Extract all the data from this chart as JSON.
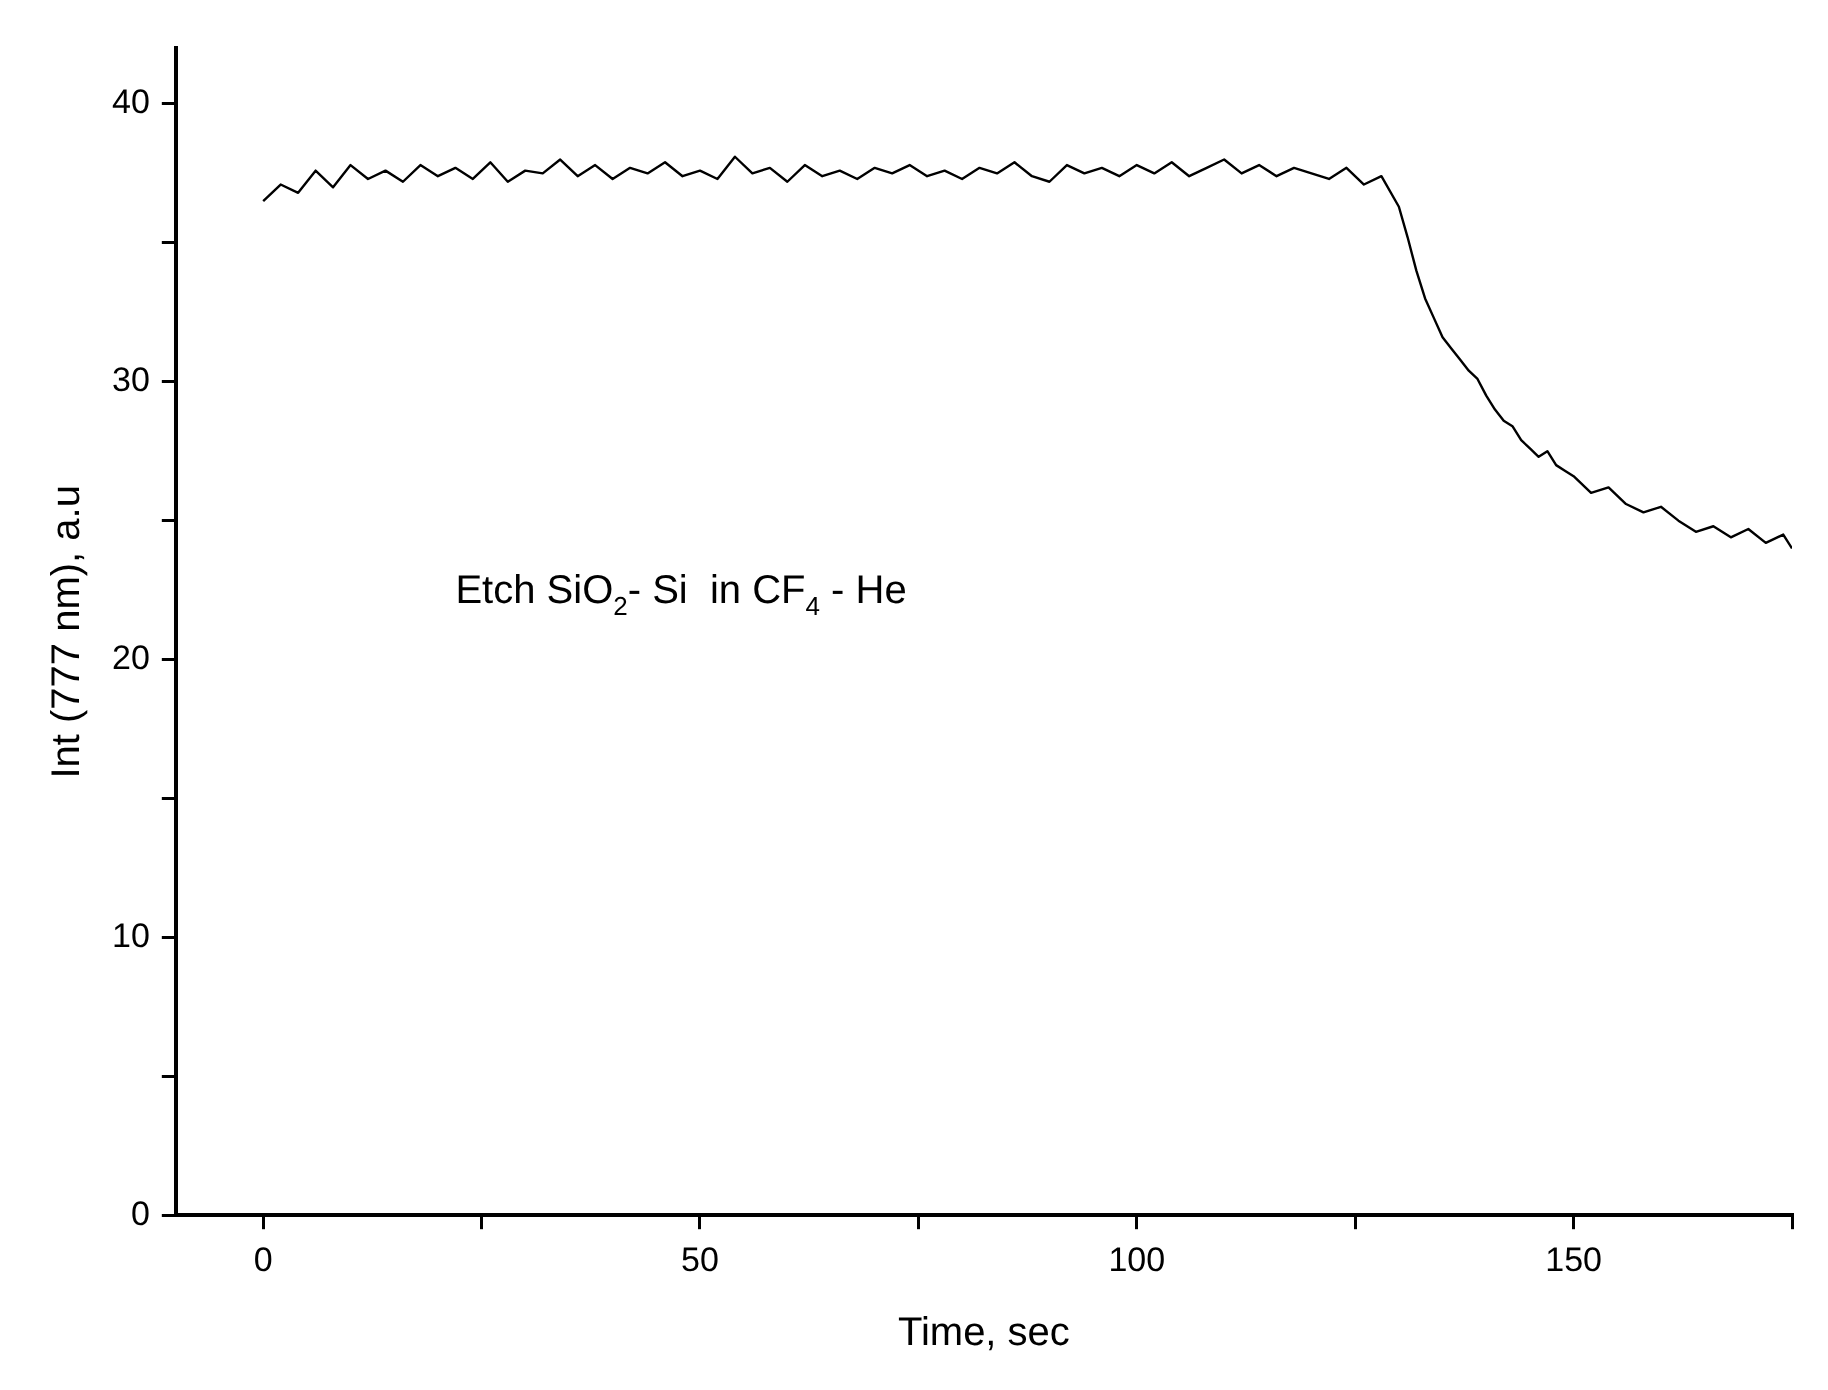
{
  "chart_data": {
    "type": "line",
    "xlabel": "Time, sec",
    "ylabel": "Int (777 nm), a.u",
    "annotations": [
      "Etch SiO$_{2}$- Si  in CF$_{4}$ - He"
    ],
    "x": [
      0,
      2,
      4,
      6,
      8,
      10,
      12,
      14,
      16,
      18,
      20,
      22,
      24,
      26,
      28,
      30,
      32,
      34,
      36,
      38,
      40,
      42,
      44,
      46,
      48,
      50,
      52,
      54,
      56,
      58,
      60,
      62,
      64,
      66,
      68,
      70,
      72,
      74,
      76,
      78,
      80,
      82,
      84,
      86,
      88,
      90,
      92,
      94,
      96,
      98,
      100,
      102,
      104,
      106,
      108,
      110,
      112,
      114,
      116,
      118,
      120,
      122,
      124,
      126,
      128,
      130,
      131,
      132,
      133,
      134,
      135,
      136,
      137,
      138,
      139,
      140,
      141,
      142,
      143,
      144,
      145,
      146,
      147,
      148,
      149,
      150,
      152,
      154,
      156,
      158,
      160,
      162,
      164,
      166,
      168,
      170,
      172,
      174,
      175
    ],
    "series": [
      {
        "color": "#000000",
        "values": [
          36.5,
          37.1,
          36.8,
          37.6,
          37.0,
          37.8,
          37.3,
          37.6,
          37.2,
          37.8,
          37.4,
          37.7,
          37.3,
          37.9,
          37.2,
          37.6,
          37.5,
          38.0,
          37.4,
          37.8,
          37.3,
          37.7,
          37.5,
          37.9,
          37.4,
          37.6,
          37.3,
          38.1,
          37.5,
          37.7,
          37.2,
          37.8,
          37.4,
          37.6,
          37.3,
          37.7,
          37.5,
          37.8,
          37.4,
          37.6,
          37.3,
          37.7,
          37.5,
          37.9,
          37.4,
          37.2,
          37.8,
          37.5,
          37.7,
          37.4,
          37.8,
          37.5,
          37.9,
          37.4,
          37.7,
          38.0,
          37.5,
          37.8,
          37.4,
          37.7,
          37.5,
          37.3,
          37.7,
          37.1,
          37.4,
          36.3,
          35.2,
          34.0,
          33.0,
          32.3,
          31.6,
          31.2,
          30.8,
          30.4,
          30.1,
          29.5,
          29.0,
          28.6,
          28.4,
          27.9,
          27.6,
          27.3,
          27.5,
          27.0,
          26.8,
          26.6,
          26.0,
          26.2,
          25.6,
          25.3,
          25.5,
          25.0,
          24.6,
          24.8,
          24.4,
          24.7,
          24.2,
          24.5,
          24.0
        ]
      }
    ],
    "xlim": [
      -10,
      175
    ],
    "ylim": [
      0,
      42
    ],
    "xticks": [
      0,
      {
        "value": 25,
        "label": null
      },
      50,
      {
        "value": 75,
        "label": null
      },
      100,
      {
        "value": 125,
        "label": null
      },
      150,
      {
        "value": 175,
        "label": null
      }
    ],
    "yticks": [
      0,
      {
        "value": 5,
        "label": null
      },
      10,
      {
        "value": 15,
        "label": null
      },
      20,
      {
        "value": 25,
        "label": null
      },
      30,
      {
        "value": 35,
        "label": null
      },
      40
    ],
    "grid": false,
    "legend": false,
    "marker": "none",
    "line_style": "solid"
  }
}
